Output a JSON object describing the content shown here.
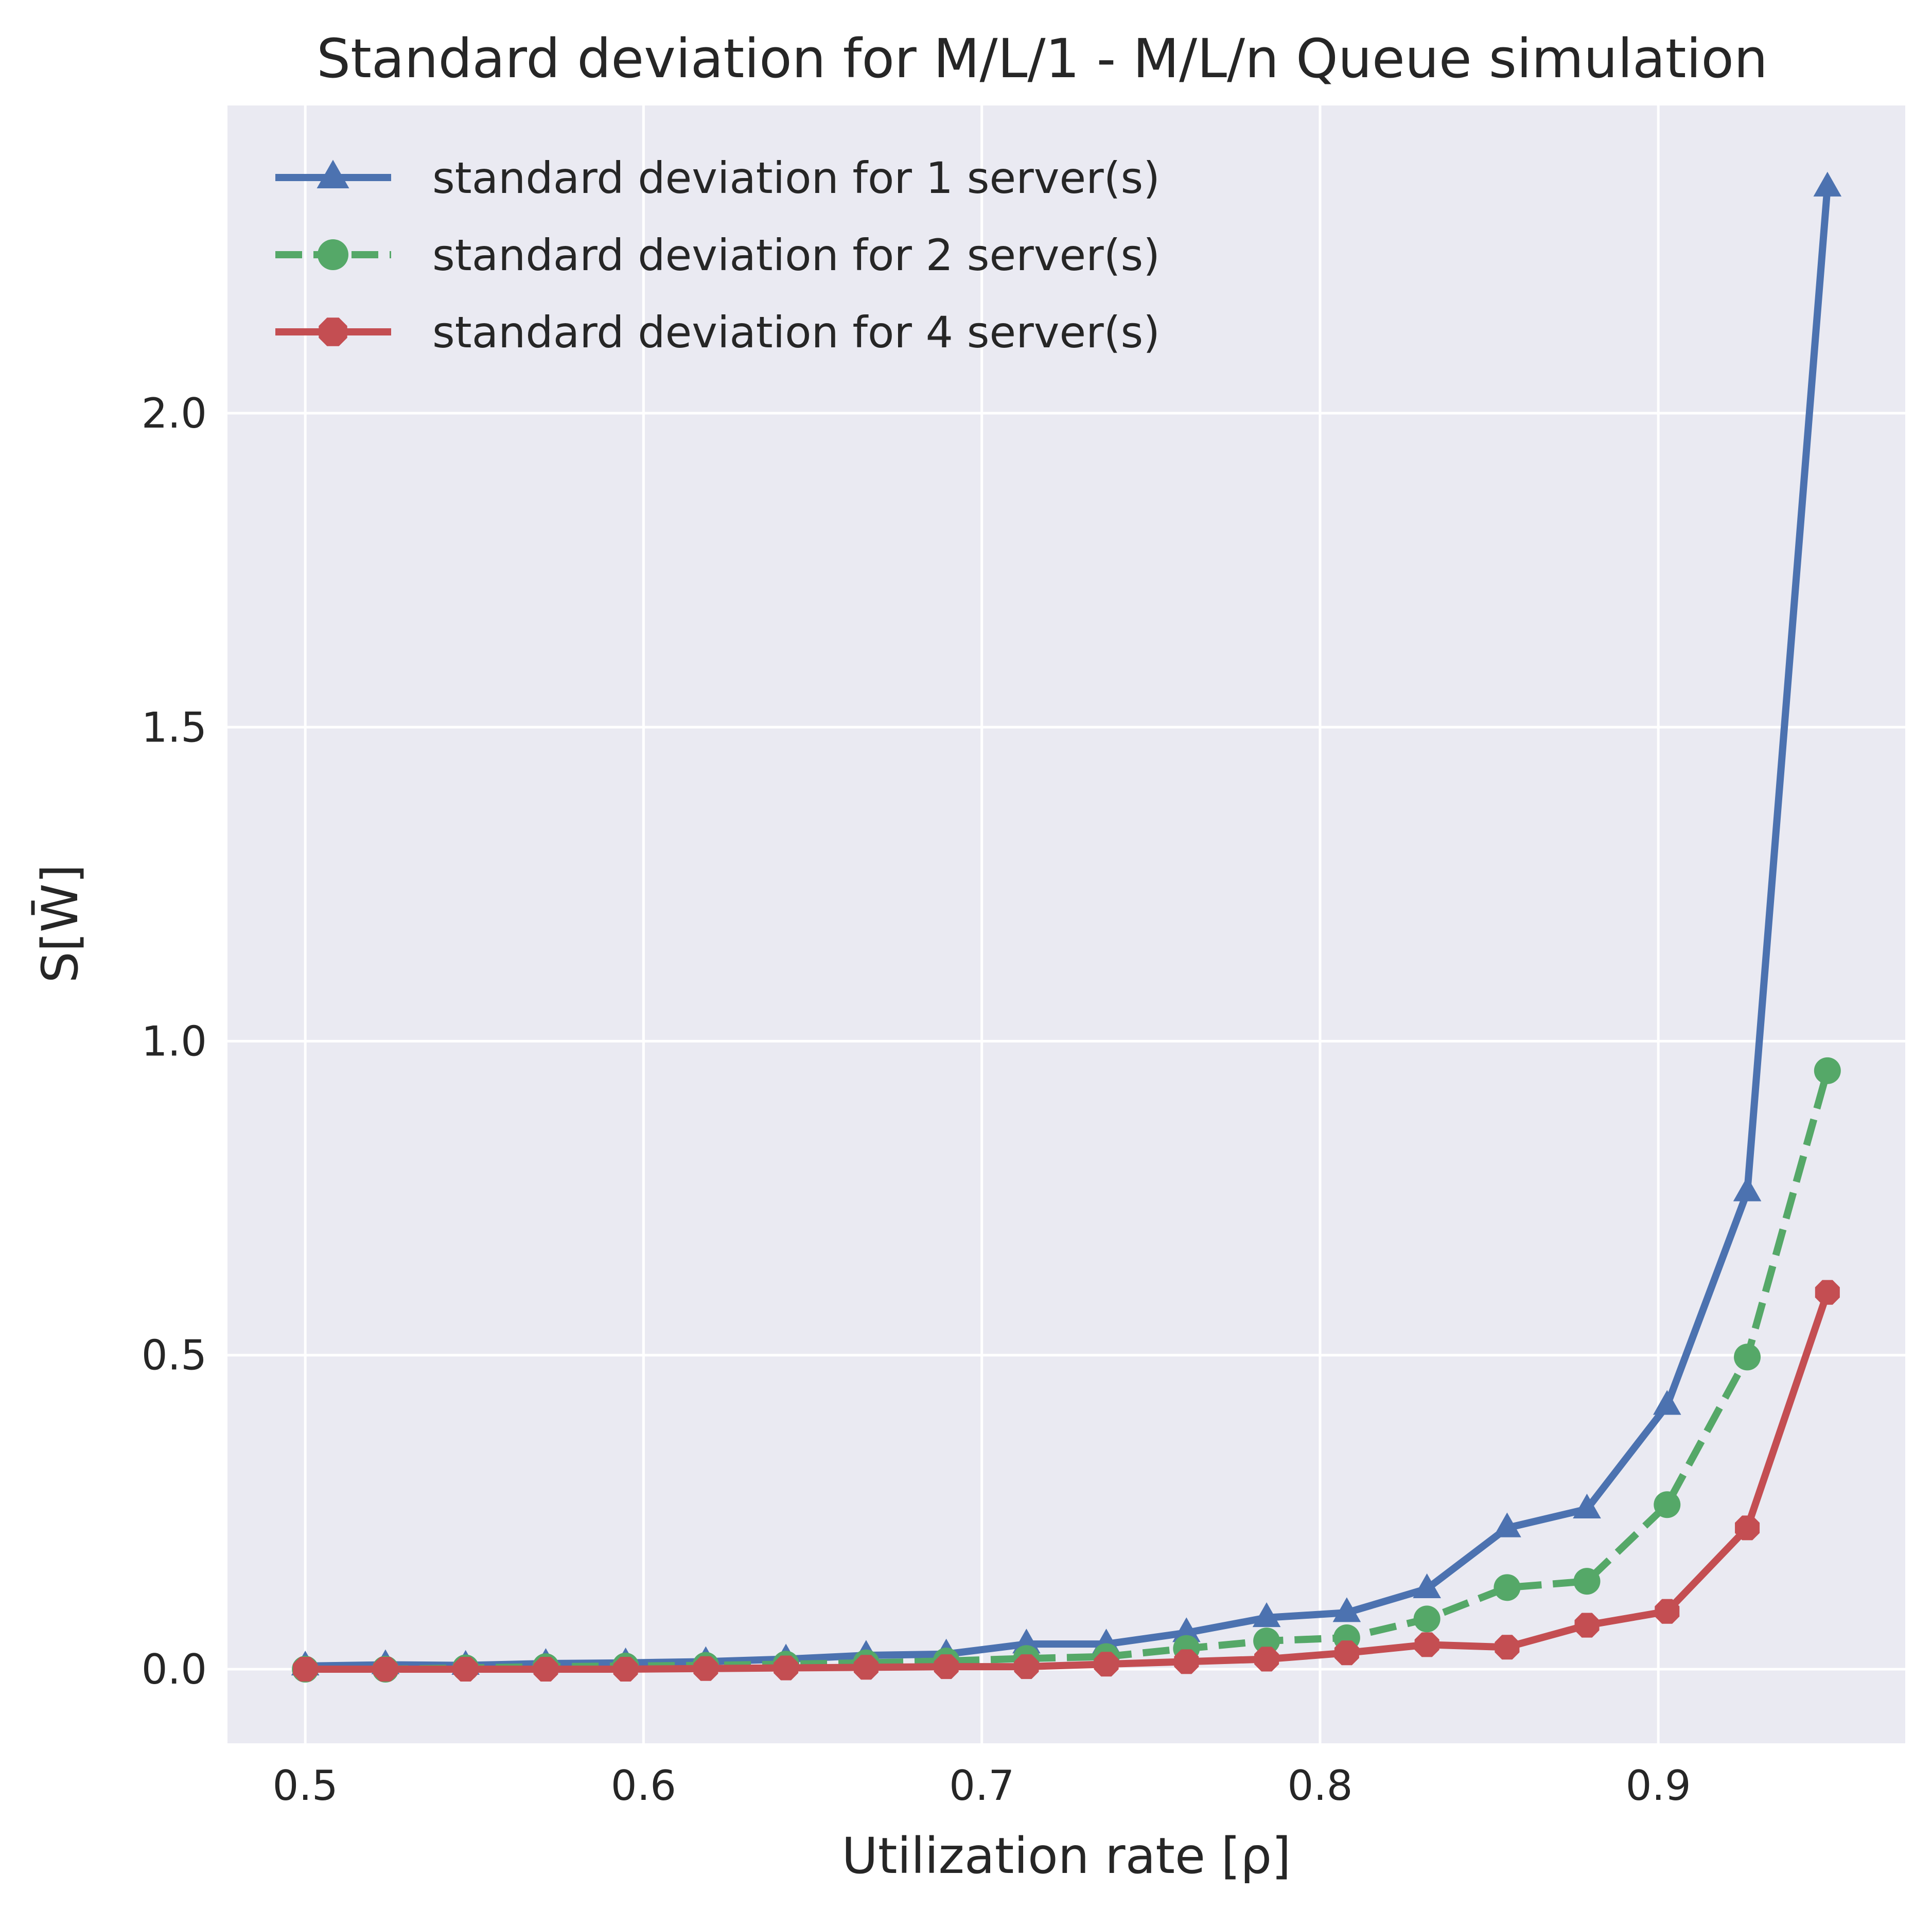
{
  "chart_data": {
    "type": "line",
    "title": "Standard deviation for M/L/1 - M/L/n Queue simulation",
    "xlabel": "Utilization rate [ρ]",
    "ylabel": "S[W̄]",
    "xlim": [
      0.477,
      0.973
    ],
    "ylim": [
      -0.118,
      2.49
    ],
    "x_ticks": [
      0.5,
      0.6,
      0.7,
      0.8,
      0.9
    ],
    "x_tick_labels": [
      "0.5",
      "0.6",
      "0.7",
      "0.8",
      "0.9"
    ],
    "y_ticks": [
      0.0,
      0.5,
      1.0,
      1.5,
      2.0
    ],
    "y_tick_labels": [
      "0.0",
      "0.5",
      "1.0",
      "1.5",
      "2.0"
    ],
    "grid": true,
    "legend_position": "top-left",
    "x": [
      0.5,
      0.5237,
      0.5474,
      0.5711,
      0.5947,
      0.6184,
      0.6421,
      0.6658,
      0.6895,
      0.7132,
      0.7368,
      0.7605,
      0.7842,
      0.8079,
      0.8316,
      0.8553,
      0.8789,
      0.9026,
      0.9263,
      0.95
    ],
    "series": [
      {
        "name": "standard deviation for 1 server(s)",
        "color": "#4c72b0",
        "marker": "triangle",
        "dash": "solid",
        "values": [
          0.005,
          0.007,
          0.006,
          0.009,
          0.01,
          0.012,
          0.016,
          0.022,
          0.024,
          0.04,
          0.04,
          0.058,
          0.082,
          0.09,
          0.128,
          0.225,
          0.255,
          0.42,
          0.76,
          2.36
        ]
      },
      {
        "name": "standard deviation for 2 server(s)",
        "color": "#55a868",
        "marker": "circle",
        "dash": "dashed",
        "values": [
          0.0,
          0.0,
          0.002,
          0.004,
          0.005,
          0.006,
          0.008,
          0.01,
          0.013,
          0.017,
          0.02,
          0.033,
          0.045,
          0.05,
          0.08,
          0.13,
          0.14,
          0.262,
          0.497,
          0.953
        ]
      },
      {
        "name": "standard deviation for 4 server(s)",
        "color": "#c44e52",
        "marker": "octagon",
        "dash": "solid",
        "values": [
          0.0,
          0.0,
          0.0,
          0.0,
          0.0,
          0.001,
          0.002,
          0.003,
          0.004,
          0.004,
          0.008,
          0.012,
          0.016,
          0.026,
          0.039,
          0.035,
          0.07,
          0.092,
          0.225,
          0.6
        ]
      }
    ]
  }
}
